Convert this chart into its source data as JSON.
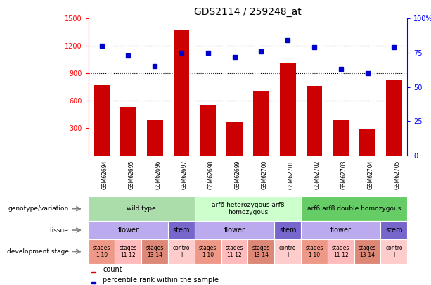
{
  "title": "GDS2114 / 259248_at",
  "samples": [
    "GSM62694",
    "GSM62695",
    "GSM62696",
    "GSM62697",
    "GSM62698",
    "GSM62699",
    "GSM62700",
    "GSM62701",
    "GSM62702",
    "GSM62703",
    "GSM62704",
    "GSM62705"
  ],
  "counts": [
    770,
    530,
    380,
    1370,
    555,
    360,
    710,
    1010,
    760,
    380,
    290,
    820
  ],
  "percentiles": [
    80,
    73,
    65,
    75,
    75,
    72,
    76,
    84,
    79,
    63,
    60,
    79
  ],
  "ylim_left": [
    0,
    1500
  ],
  "ylim_right": [
    0,
    100
  ],
  "yticks_left": [
    300,
    600,
    900,
    1200,
    1500
  ],
  "yticks_right": [
    0,
    25,
    50,
    75,
    100
  ],
  "bar_color": "#cc0000",
  "dot_color": "#0000cc",
  "background_color": "#ffffff",
  "chart_bg": "#ffffff",
  "genotype_groups": [
    {
      "label": "wild type",
      "start": 0,
      "end": 3,
      "color": "#aaddaa"
    },
    {
      "label": "arf6 heterozygous arf8\nhomozygous",
      "start": 4,
      "end": 7,
      "color": "#ccffcc"
    },
    {
      "label": "arf6 arf8 double homozygous",
      "start": 8,
      "end": 11,
      "color": "#66cc66"
    }
  ],
  "tissue_groups": [
    {
      "label": "flower",
      "start": 0,
      "end": 2,
      "color": "#bbaaee"
    },
    {
      "label": "stem",
      "start": 3,
      "end": 3,
      "color": "#7766cc"
    },
    {
      "label": "flower",
      "start": 4,
      "end": 6,
      "color": "#bbaaee"
    },
    {
      "label": "stem",
      "start": 7,
      "end": 7,
      "color": "#7766cc"
    },
    {
      "label": "flower",
      "start": 8,
      "end": 10,
      "color": "#bbaaee"
    },
    {
      "label": "stem",
      "start": 11,
      "end": 11,
      "color": "#7766cc"
    }
  ],
  "dev_stage_groups": [
    {
      "label": "stages\n1-10",
      "start": 0,
      "end": 0,
      "color": "#ee9988"
    },
    {
      "label": "stages\n11-12",
      "start": 1,
      "end": 1,
      "color": "#ffbbbb"
    },
    {
      "label": "stages\n13-14",
      "start": 2,
      "end": 2,
      "color": "#dd8877"
    },
    {
      "label": "contro\nl",
      "start": 3,
      "end": 3,
      "color": "#ffcccc"
    },
    {
      "label": "stages\n1-10",
      "start": 4,
      "end": 4,
      "color": "#ee9988"
    },
    {
      "label": "stages\n11-12",
      "start": 5,
      "end": 5,
      "color": "#ffbbbb"
    },
    {
      "label": "stages\n13-14",
      "start": 6,
      "end": 6,
      "color": "#dd8877"
    },
    {
      "label": "contro\nl",
      "start": 7,
      "end": 7,
      "color": "#ffcccc"
    },
    {
      "label": "stages\n1-10",
      "start": 8,
      "end": 8,
      "color": "#ee9988"
    },
    {
      "label": "stages\n11-12",
      "start": 9,
      "end": 9,
      "color": "#ffbbbb"
    },
    {
      "label": "stages\n13-14",
      "start": 10,
      "end": 10,
      "color": "#dd8877"
    },
    {
      "label": "contro\nl",
      "start": 11,
      "end": 11,
      "color": "#ffcccc"
    }
  ],
  "legend_count_label": "count",
  "legend_pct_label": "percentile rank within the sample",
  "xticklabel_bg": "#cccccc"
}
